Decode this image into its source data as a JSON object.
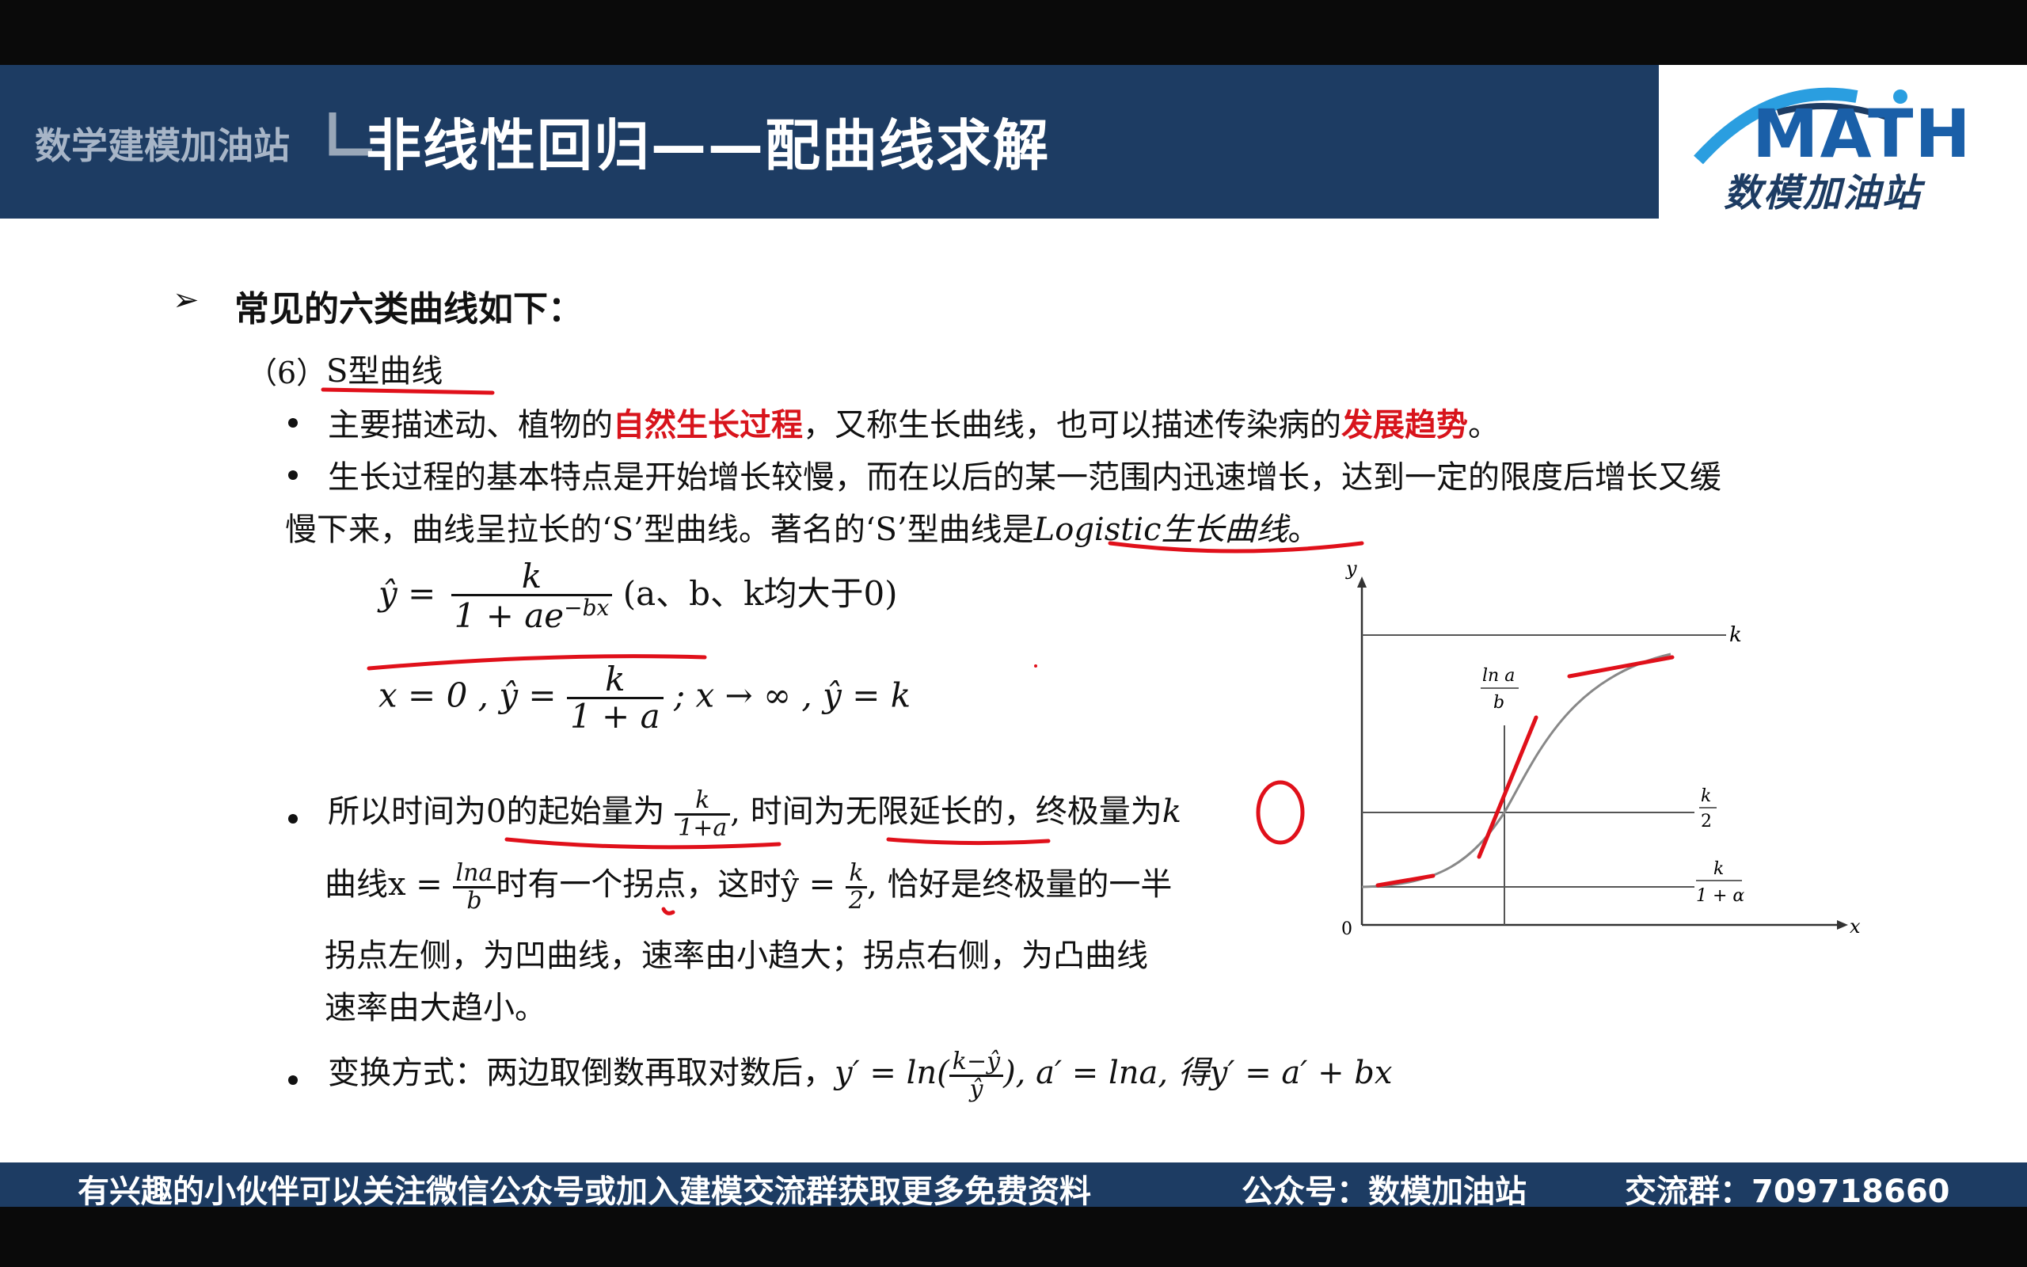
{
  "header": {
    "brand": "数学建模加油站",
    "title": "非线性回归——配曲线求解",
    "logo_word": "MATH",
    "logo_sub": "数模加油站"
  },
  "slide": {
    "heading_bullet": "➢",
    "heading": "常见的六类曲线如下：",
    "section_num": "（6）",
    "section_title": "S型曲线",
    "b1": {
      "t1": "主要描述动、植物的",
      "r1": "自然生长过程",
      "t2": "，又称生长曲线，也可以描述传染病的",
      "r2": "发展趋势",
      "t3": "。"
    },
    "b2": {
      "line1": "生长过程的基本特点是开始增长较慢，而在以后的某一范围内迅速增长，达到一定的限度后增长又缓",
      "line2a": "慢下来，曲线呈拉长的‘S’型曲线。著名的‘S’型曲线是",
      "line2b": "Logistic生长曲线",
      "line2c": "。"
    },
    "f1": {
      "lhs": "ŷ =",
      "num": "k",
      "den": "1 + ae",
      "exp": "−bx",
      "cond": "(a、b、k均大于0)"
    },
    "f2": {
      "a": "x = 0 , ŷ =",
      "num": "k",
      "den": "1 + a",
      "b": "; x → ∞ , ŷ = k"
    },
    "b3": {
      "l1a": "所以时间为0的起始量为",
      "fnum": "k",
      "fden": "1+a",
      "l1b": ", 时间为无限延长的，终极量为",
      "l1k": "k",
      "l2a": "曲线x =",
      "f2num": "lna",
      "f2den": "b",
      "l2b": "时有一个拐点，这时ŷ =",
      "f3num": "k",
      "f3den": "2",
      "l2c": ", 恰好是终极量的一半",
      "l3": "拐点左侧，为凹曲线，速率由小趋大；拐点右侧，为凸曲线",
      "l4": "速率由大趋小。"
    },
    "b4": {
      "a": "变换方式：两边取倒数再取对数后，",
      "b": "y′ = ln(",
      "num": "k−ŷ",
      "den": "ŷ",
      "c": "), a′ = lna, 得y′ = a′ + bx"
    }
  },
  "chart": {
    "y_label": "y",
    "x_label": "x",
    "origin": "0",
    "k_label": "k",
    "inflect_num": "ln a",
    "inflect_den": "b",
    "half_num": "k",
    "half_den": "2",
    "start_num": "k",
    "start_den": "1 + α"
  },
  "footer": {
    "left": "有兴趣的小伙伴可以关注微信公众号或加入建模交流群获取更多免费资料",
    "mid": "公众号：数模加油站",
    "right": "交流群：709718660"
  }
}
